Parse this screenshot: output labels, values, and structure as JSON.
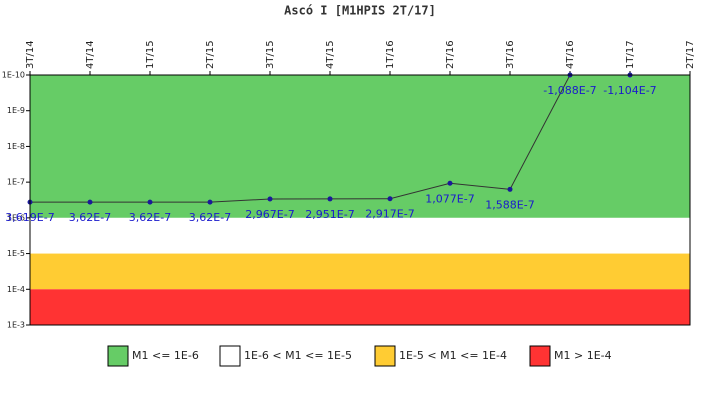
{
  "chart_data": {
    "type": "line",
    "title": "Ascó I [M1HPIS 2T/17]",
    "categories": [
      "3T/14",
      "4T/14",
      "1T/15",
      "2T/15",
      "3T/15",
      "4T/15",
      "1T/16",
      "2T/16",
      "3T/16",
      "4T/16",
      "1T/17",
      "2T/17"
    ],
    "series": [
      {
        "name": "M1",
        "color": "#333333",
        "marker_color": "#1a1a99",
        "values": [
          3.619e-07,
          3.62e-07,
          3.62e-07,
          3.62e-07,
          2.967e-07,
          2.951e-07,
          2.917e-07,
          1.077e-07,
          1.588e-07,
          -1.088e-07,
          -1.104e-07,
          null
        ],
        "value_labels": [
          "3,619E-7",
          "3,62E-7",
          "3,62E-7",
          "3,62E-7",
          "2,967E-7",
          "2,951E-7",
          "2,917E-7",
          "1,077E-7",
          "1,588E-7",
          "-1,088E-7",
          "-1,104E-7",
          null
        ]
      }
    ],
    "log_y": true,
    "y_inverted": true,
    "ylim": [
      1e-10,
      0.001
    ],
    "yticks": [
      {
        "value": 1e-10,
        "label": "1E-10"
      },
      {
        "value": 1e-09,
        "label": "1E-9"
      },
      {
        "value": 1e-08,
        "label": "1E-8"
      },
      {
        "value": 1e-07,
        "label": "1E-7"
      },
      {
        "value": 1e-06,
        "label": "1E-6"
      },
      {
        "value": 1e-05,
        "label": "1E-5"
      },
      {
        "value": 0.0001,
        "label": "1E-4"
      },
      {
        "value": 0.001,
        "label": "1E-3"
      }
    ],
    "bands": [
      {
        "name": "M1 <= 1E-6",
        "from": 1e-10,
        "to": 1e-06,
        "color": "#66cc66"
      },
      {
        "name": "1E-6 < M1 <= 1E-5",
        "from": 1e-06,
        "to": 1e-05,
        "color": "#ffffff"
      },
      {
        "name": "1E-5 < M1 <= 1E-4",
        "from": 1e-05,
        "to": 0.0001,
        "color": "#ffcc33"
      },
      {
        "name": "M1 > 1E-4",
        "from": 0.0001,
        "to": 0.001,
        "color": "#ff3333"
      }
    ],
    "legend": "bottom"
  }
}
